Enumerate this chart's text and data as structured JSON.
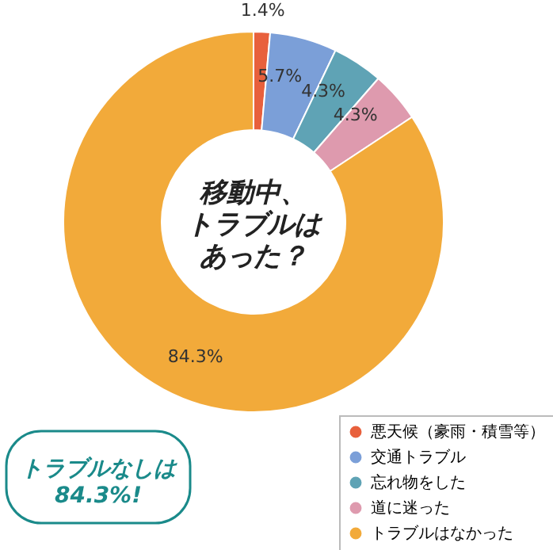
{
  "chart_data": {
    "type": "donut",
    "title": "移動中、トラブルはあった？",
    "categories": [
      "悪天候（豪雨・積雪等）",
      "交通トラブル",
      "忘れ物をした",
      "道に迷った",
      "トラブルはなかった"
    ],
    "values": [
      1.4,
      5.7,
      4.3,
      4.3,
      84.3
    ],
    "colors": [
      "#e8603c",
      "#7b9fd8",
      "#5fa3b5",
      "#de9aae",
      "#f2aa3a"
    ],
    "value_labels": [
      "1.4%",
      "5.7%",
      "4.3%",
      "4.3%",
      "84.3%"
    ],
    "legend": "bottom right",
    "annotations": [
      "トラブルなしは84.3%!"
    ]
  }
}
